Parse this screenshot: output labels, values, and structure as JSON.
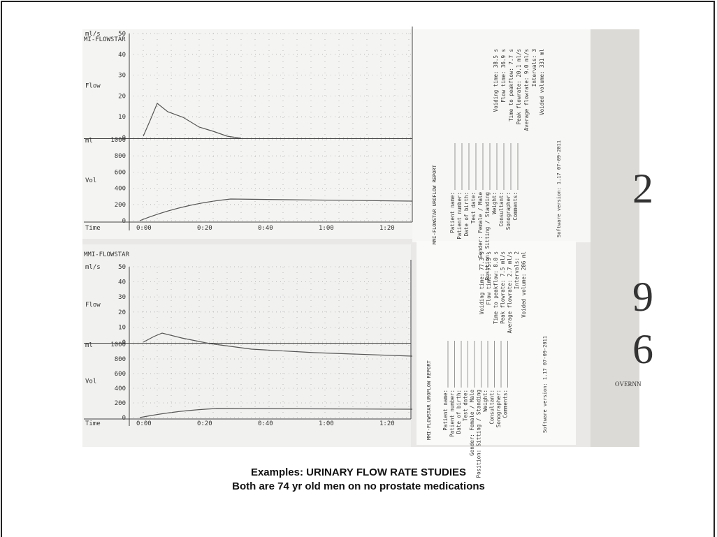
{
  "charts": [
    {
      "header": "MI-FLOWSTAR",
      "flow_units": "ml/s",
      "flow_label": "Flow",
      "vol_units": "ml",
      "vol_label": "Vol",
      "time_label": "Time",
      "flow_ticks": [
        50,
        40,
        30,
        20,
        10,
        0
      ],
      "vol_ticks": [
        1000,
        800,
        600,
        400,
        200,
        0
      ],
      "time_ticks": [
        "0:00",
        "0:20",
        "0:40",
        "1:00",
        "1:20"
      ]
    },
    {
      "header": "MMI-FLOWSTAR",
      "flow_units": "ml/s",
      "flow_label": "Flow",
      "vol_units": "ml",
      "vol_label": "Vol",
      "time_label": "Time",
      "flow_ticks": [
        50,
        40,
        30,
        20,
        10,
        0
      ],
      "vol_ticks": [
        1000,
        800,
        600,
        400,
        200,
        0
      ],
      "time_ticks": [
        "0:00",
        "0:20",
        "0:40",
        "1:00",
        "1:20"
      ]
    }
  ],
  "reports": [
    {
      "title": "MMI-FLOWSTAR UROFLOW REPORT",
      "fields": [
        "Patient name:",
        "Patient number:",
        "Date of birth:",
        "Test date:",
        "Gender: Female / Male",
        "Position: Sitting / Standing",
        "Weight:",
        "Consultant:",
        "Sonographer:",
        "Comments:"
      ],
      "results": [
        "Voiding time: 38.5 s",
        "Flow time: 36.9 s",
        "Time to peakflow: 7.7 s",
        "Peak flowrate: 20.1 ml/s",
        "Average flowrate: 9.0 ml/s",
        "Intervals: 3",
        "Voided volume: 331 ml"
      ],
      "software": "Software version: 1.17 07-09-2011"
    },
    {
      "title": "MMI-FLOWSTAR UROFLOW REPORT",
      "fields": [
        "Patient name:",
        "Patient number:",
        "Date of birth:",
        "Test date:",
        "Gender: Female / Male",
        "Position: Sitting / Standing",
        "Weight:",
        "Consultant:",
        "Sonographer:",
        "Comments:"
      ],
      "results": [
        "Voiding time: 77.3 s",
        "Flow time: 75.3 s",
        "Time to peakflow: 8.0 s",
        "Peak flowrate: 7.5 ml/s",
        "Average flowrate: 2.7 ml/s",
        "Intervals: 2",
        "Voided volume: 206 ml"
      ],
      "software": "Software version: 1.17 07-09-2011"
    }
  ],
  "background_marks": [
    "2",
    "9",
    "6",
    "OVERNN"
  ],
  "caption": {
    "line1": "Examples: URINARY FLOW RATE STUDIES",
    "line2": "Both are 74 yr old men on no prostate medications"
  }
}
